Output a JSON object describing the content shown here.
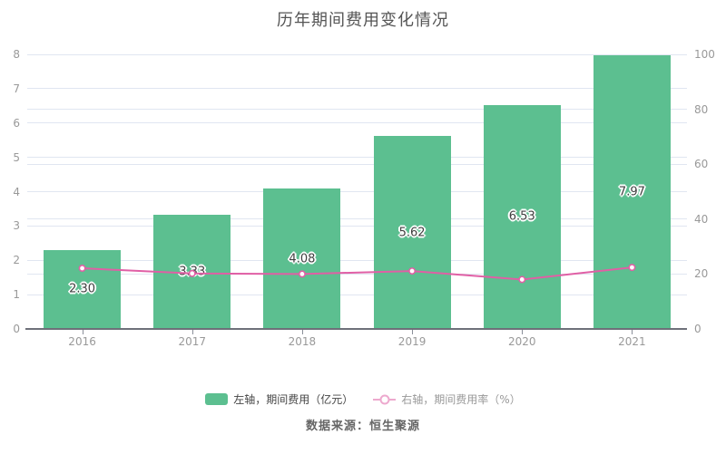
{
  "title": "历年期间费用变化情况",
  "footer": "数据来源：恒生聚源",
  "colors": {
    "bar": "#5CBF90",
    "line": "#E05FA5",
    "legend_line": "#EDA9CE",
    "grid": "#E0E6F1",
    "axis_line": "#6E7079",
    "axis_label": "#999999",
    "bar_label": "#404040",
    "legend_text": "#464646",
    "legend_text_muted": "#999999",
    "title_color": "#555555",
    "footer_color": "#666666"
  },
  "legend": {
    "items": [
      {
        "label": "左轴，期间费用（亿元）",
        "type": "bar"
      },
      {
        "label": "右轴，期间费用率（%）",
        "type": "line"
      }
    ]
  },
  "chart_data": {
    "type": "bar",
    "subtype": "dual-axis bar+line",
    "title": "历年期间费用变化情况",
    "categories": [
      "2016",
      "2017",
      "2018",
      "2019",
      "2020",
      "2021"
    ],
    "series": [
      {
        "name": "左轴，期间费用（亿元）",
        "type": "bar",
        "axis": "left",
        "values": [
          2.3,
          3.33,
          4.08,
          5.62,
          6.53,
          7.97
        ],
        "labels": [
          "2.30",
          "3.33",
          "4.08",
          "5.62",
          "6.53",
          "7.97"
        ]
      },
      {
        "name": "右轴，期间费用率（%）",
        "type": "line",
        "axis": "right",
        "values": [
          22.1,
          20.2,
          20.0,
          21.1,
          18.0,
          22.4
        ]
      }
    ],
    "left_axis": {
      "min": 0,
      "max": 8,
      "ticks": [
        0,
        1,
        2,
        3,
        4,
        5,
        6,
        7,
        8
      ]
    },
    "right_axis": {
      "min": 0,
      "max": 100,
      "ticks": [
        0,
        20,
        40,
        60,
        80,
        100
      ]
    },
    "grid": true,
    "legend_position": "bottom",
    "source_note": "数据来源：恒生聚源"
  }
}
